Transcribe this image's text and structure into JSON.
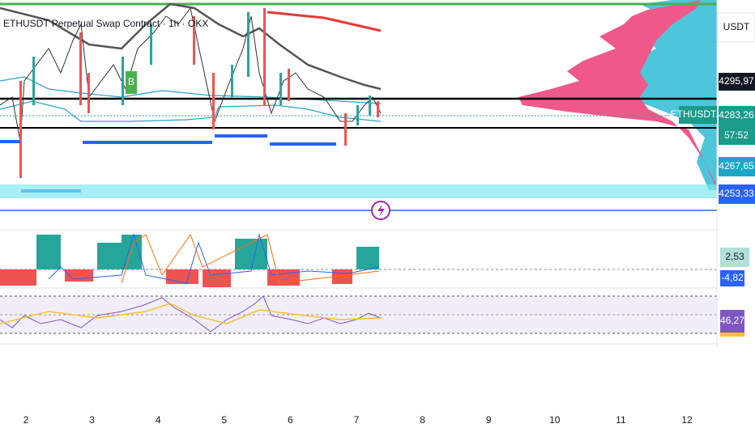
{
  "header": {
    "symbol": "ETHUSDT Perpetual Swap Contract · 1h · OKX",
    "currency": "USDT"
  },
  "markers": {
    "buy": "B"
  },
  "price_axis": {
    "labels": [
      "4295,97",
      "4283,26",
      "57:52",
      "4267,65",
      "4253,33"
    ],
    "symbol_tag": "ETHUSDT.P"
  },
  "indicators": {
    "macd": [
      "2,53",
      "-4,82"
    ],
    "rsi": "46,27"
  },
  "time_axis": {
    "labels": [
      "2",
      "3",
      "4",
      "5",
      "6",
      "7",
      "8",
      "9",
      "10",
      "11",
      "12"
    ]
  }
}
